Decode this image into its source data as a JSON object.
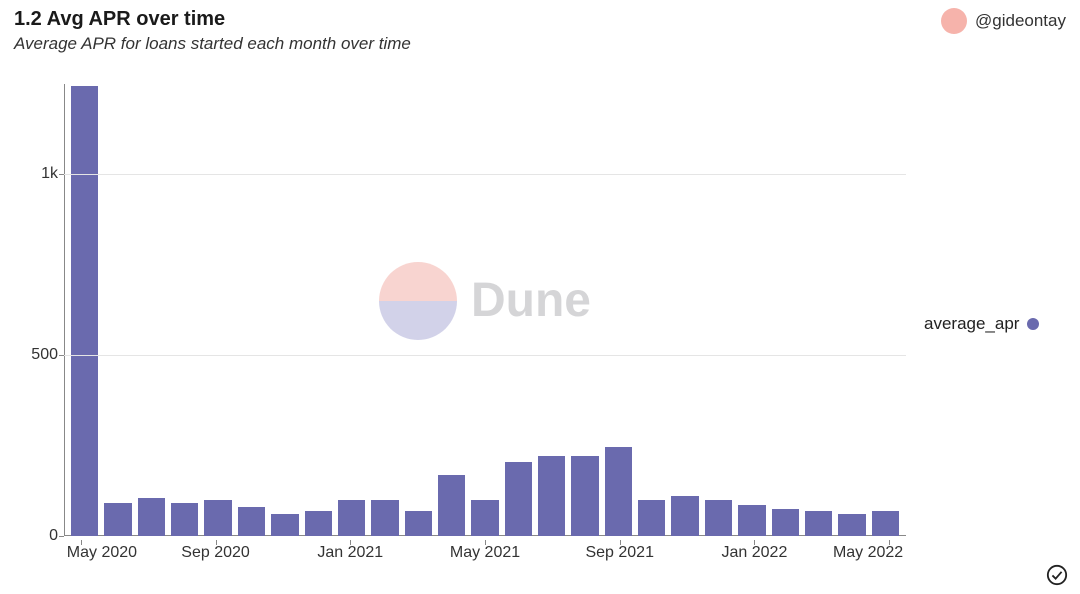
{
  "header": {
    "title": "1.2 Avg APR over time",
    "subtitle": "Average APR for loans started each month over time"
  },
  "author": {
    "handle": "@gideontay",
    "avatar_color": "#f6b3ab"
  },
  "watermark": {
    "text": "Dune",
    "top_color": "#f3b2aa",
    "bottom_color": "#aeaed8",
    "text_color": "#b4b4b8"
  },
  "legend": {
    "label": "average_apr",
    "color": "#6a6aae"
  },
  "chart": {
    "type": "bar",
    "bar_color": "#6a6aae",
    "background_color": "#ffffff",
    "grid_color": "#e5e5e5",
    "axis_color": "#888888",
    "ylim": [
      0,
      1250
    ],
    "yticks": [
      {
        "value": 0,
        "label": "0"
      },
      {
        "value": 500,
        "label": "500"
      },
      {
        "value": 1000,
        "label": "1k"
      }
    ],
    "bar_width_ratio": 0.82,
    "categories": [
      "May 2020",
      "Jun 2020",
      "Jul 2020",
      "Aug 2020",
      "Sep 2020",
      "Oct 2020",
      "Nov 2020",
      "Dec 2020",
      "Jan 2021",
      "Feb 2021",
      "Mar 2021",
      "Apr 2021",
      "May 2021",
      "Jun 2021",
      "Jul 2021",
      "Aug 2021",
      "Sep 2021",
      "Oct 2021",
      "Nov 2021",
      "Dec 2021",
      "Jan 2022",
      "Feb 2022",
      "Mar 2022",
      "Apr 2022",
      "May 2022"
    ],
    "values": [
      1245,
      90,
      105,
      90,
      100,
      80,
      60,
      70,
      100,
      100,
      70,
      170,
      100,
      205,
      220,
      220,
      245,
      100,
      110,
      100,
      85,
      75,
      70,
      60,
      70
    ],
    "xticks": [
      {
        "index": 0,
        "label": "May 2020"
      },
      {
        "index": 4,
        "label": "Sep 2020"
      },
      {
        "index": 8,
        "label": "Jan 2021"
      },
      {
        "index": 12,
        "label": "May 2021"
      },
      {
        "index": 16,
        "label": "Sep 2021"
      },
      {
        "index": 20,
        "label": "Jan 2022"
      },
      {
        "index": 24,
        "label": "May 2022"
      }
    ],
    "label_fontsize": 16
  },
  "corner_icon": "checkmark-circle"
}
